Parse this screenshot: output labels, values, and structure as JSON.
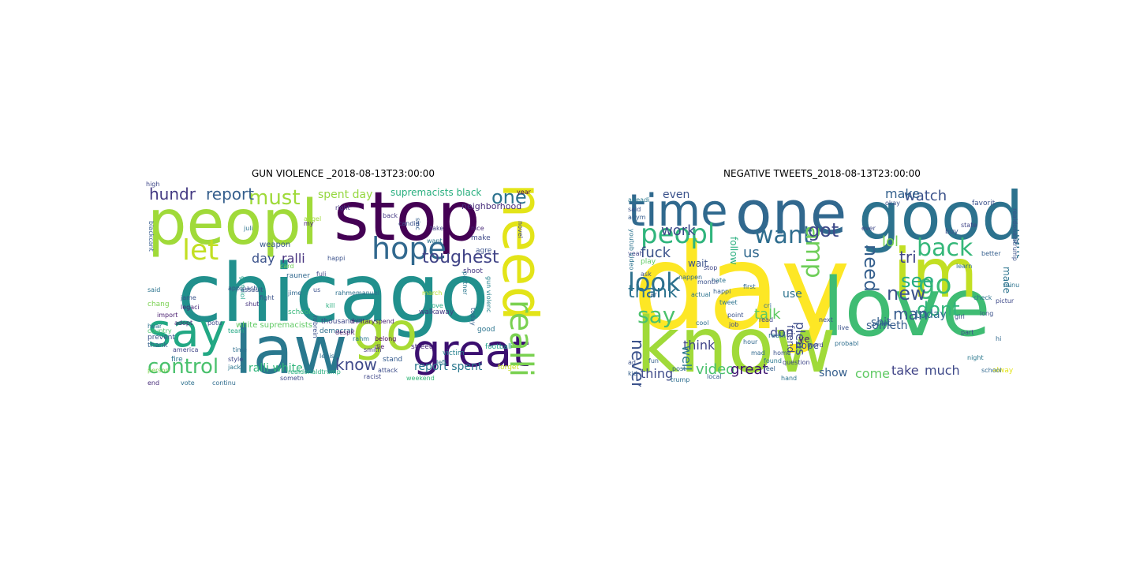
{
  "clouds": [
    {
      "title": "GUN VIOLENCE _2018-08-13T23:00:00",
      "words": [
        {
          "text": "chicago",
          "color": "#21908d"
        },
        {
          "text": "stop",
          "color": "#440154"
        },
        {
          "text": "peopl",
          "color": "#a0da39"
        },
        {
          "text": "law",
          "color": "#2a788e"
        },
        {
          "text": "say",
          "color": "#22a884"
        },
        {
          "text": "go",
          "color": "#a8db34"
        },
        {
          "text": "great",
          "color": "#3b0f70"
        },
        {
          "text": "need",
          "color": "#e3e418"
        },
        {
          "text": "hope",
          "color": "#31688e"
        },
        {
          "text": "let",
          "color": "#c2df23"
        },
        {
          "text": "control",
          "color": "#4ac16d"
        },
        {
          "text": "toughest",
          "color": "#414487"
        },
        {
          "text": "realli",
          "color": "#7ad151"
        },
        {
          "text": "must",
          "color": "#9fda3a"
        },
        {
          "text": "one",
          "color": "#2c728e"
        },
        {
          "text": "hundr",
          "color": "#443a83"
        },
        {
          "text": "report",
          "color": "#355f8d"
        },
        {
          "text": "know",
          "color": "#3e4989"
        },
        {
          "text": "spent day",
          "color": "#95d840"
        },
        {
          "text": "day",
          "color": "#3b528b"
        },
        {
          "text": "ralli",
          "color": "#46327e"
        },
        {
          "text": "report spent",
          "color": "#2a788e"
        },
        {
          "text": "ralli white",
          "color": "#31b57b"
        },
        {
          "text": "white supremacists",
          "color": "#5ec962"
        },
        {
          "text": "supremacists black",
          "color": "#29af7f"
        },
        {
          "text": "neighborhood",
          "color": "#472d7b"
        },
        {
          "text": "weapon",
          "color": "#38588c"
        },
        {
          "text": "democrat",
          "color": "#2e6f8e"
        },
        {
          "text": "thousand",
          "color": "#3f4788"
        },
        {
          "text": "street",
          "color": "#482878"
        },
        {
          "text": "football",
          "color": "#1f9e89"
        },
        {
          "text": "victim",
          "color": "#26828e"
        },
        {
          "text": "stand",
          "color": "#365c8d"
        },
        {
          "text": "shoot",
          "color": "#453882"
        },
        {
          "text": "year",
          "color": "#440154"
        },
        {
          "text": "america",
          "color": "#404588"
        },
        {
          "text": "prevent",
          "color": "#3b528b"
        },
        {
          "text": "thank",
          "color": "#34618d"
        },
        {
          "text": "fire",
          "color": "#2c738e"
        },
        {
          "text": "import",
          "color": "#481d6f"
        },
        {
          "text": "chang",
          "color": "#7ad151"
        },
        {
          "text": "hear",
          "color": "#2d708e"
        },
        {
          "text": "adopt",
          "color": "#482475"
        },
        {
          "text": "potu",
          "color": "#3e4989"
        },
        {
          "text": "team",
          "color": "#22a884"
        },
        {
          "text": "time",
          "color": "#2e6e8e"
        },
        {
          "text": "style",
          "color": "#3f4889"
        },
        {
          "text": "jack",
          "color": "#2a768e"
        },
        {
          "text": "school",
          "color": "#35b779"
        },
        {
          "text": "approach",
          "color": "#3a538b"
        },
        {
          "text": "shut",
          "color": "#46337e"
        },
        {
          "text": "fight",
          "color": "#3b528b"
        },
        {
          "text": "kill",
          "color": "#29af7f"
        },
        {
          "text": "rahm",
          "color": "#2a788e"
        },
        {
          "text": "smith",
          "color": "#453781"
        },
        {
          "text": "good",
          "color": "#2b748e"
        },
        {
          "text": "die",
          "color": "#481668"
        },
        {
          "text": "left",
          "color": "#287c8e"
        },
        {
          "text": "attack",
          "color": "#3d4d8a"
        },
        {
          "text": "make",
          "color": "#3e4a89"
        },
        {
          "text": "nice",
          "color": "#482878"
        },
        {
          "text": "agre",
          "color": "#3b528b"
        },
        {
          "text": "back",
          "color": "#443983"
        },
        {
          "text": "want",
          "color": "#2c728e"
        },
        {
          "text": "take",
          "color": "#424086"
        },
        {
          "text": "happi",
          "color": "#3b528b"
        },
        {
          "text": "right",
          "color": "#453882"
        },
        {
          "text": "said",
          "color": "#2c738e"
        },
        {
          "text": "end",
          "color": "#472c7a"
        },
        {
          "text": "vote",
          "color": "#2d708e"
        },
        {
          "text": "continu",
          "color": "#2f6c8e"
        },
        {
          "text": "person",
          "color": "#7fd34e"
        },
        {
          "text": "country",
          "color": "#4cc26c"
        },
        {
          "text": "march",
          "color": "#b5de2b"
        },
        {
          "text": "walkaway",
          "color": "#443a83"
        },
        {
          "text": "love",
          "color": "#22a884"
        },
        {
          "text": "sinc",
          "color": "#355f8d"
        },
        {
          "text": "militaryspend",
          "color": "#481f70"
        },
        {
          "text": "robrein",
          "color": "#3c4f8a"
        },
        {
          "text": "gunviol",
          "color": "#1fa088"
        },
        {
          "text": "legisl",
          "color": "#2e6e8e"
        },
        {
          "text": "candid",
          "color": "#3b528b"
        },
        {
          "text": "novel",
          "color": "#404688"
        },
        {
          "text": "partner",
          "color": "#2a778e"
        },
        {
          "text": "today",
          "color": "#34608d"
        },
        {
          "text": "forget",
          "color": "#c8e020"
        },
        {
          "text": "racist",
          "color": "#3f4788"
        },
        {
          "text": "weekend",
          "color": "#35b779"
        },
        {
          "text": "despit",
          "color": "#481467"
        },
        {
          "text": "belong",
          "color": "#440154"
        },
        {
          "text": "jime",
          "color": "#31688e"
        },
        {
          "text": "jame",
          "color": "#3a548c"
        },
        {
          "text": "assault",
          "color": "#3b528b"
        },
        {
          "text": "realdonaldtrump",
          "color": "#29af7f"
        },
        {
          "text": "rahmemanuel",
          "color": "#2d708e"
        },
        {
          "text": "blackcant",
          "color": "#365c8d"
        },
        {
          "text": "legaci",
          "color": "#482878"
        },
        {
          "text": "fuli",
          "color": "#3f4788"
        },
        {
          "text": "juli",
          "color": "#2c738e"
        },
        {
          "text": "us",
          "color": "#3b528b"
        },
        {
          "text": "rauner",
          "color": "#31688e"
        },
        {
          "text": "gun violenc",
          "color": "#26828e"
        },
        {
          "text": "angel",
          "color": "#9fda3a"
        },
        {
          "text": "sometn",
          "color": "#3e4989"
        },
        {
          "text": "my",
          "color": "#482475"
        },
        {
          "text": "card",
          "color": "#6ece58"
        },
        {
          "text": "high",
          "color": "#3f4788"
        }
      ]
    },
    {
      "title": "NEGATIVE TWEETS_2018-08-13T23:00:00",
      "words": [
        {
          "text": "day",
          "color": "#fde725"
        },
        {
          "text": "love",
          "color": "#3fbc73"
        },
        {
          "text": "know",
          "color": "#a0da39"
        },
        {
          "text": "good",
          "color": "#2c728e"
        },
        {
          "text": "one",
          "color": "#31688e"
        },
        {
          "text": "im",
          "color": "#c2df23"
        },
        {
          "text": "time",
          "color": "#30698e"
        },
        {
          "text": "peopl",
          "color": "#2fb47c"
        },
        {
          "text": "want",
          "color": "#2e6d8e"
        },
        {
          "text": "back",
          "color": "#35b779"
        },
        {
          "text": "go",
          "color": "#3aba76"
        },
        {
          "text": "dont",
          "color": "#31b57b"
        },
        {
          "text": "look",
          "color": "#2d708e"
        },
        {
          "text": "thank",
          "color": "#2c728e"
        },
        {
          "text": "amp",
          "color": "#6ece58"
        },
        {
          "text": "need",
          "color": "#355f8d"
        },
        {
          "text": "new",
          "color": "#3b528b"
        },
        {
          "text": "see",
          "color": "#26ad81"
        },
        {
          "text": "say",
          "color": "#4ac16d"
        },
        {
          "text": "got",
          "color": "#3e4a89"
        },
        {
          "text": "tri",
          "color": "#404588"
        },
        {
          "text": "man",
          "color": "#365c8d"
        },
        {
          "text": "watch",
          "color": "#3b528b"
        },
        {
          "text": "make",
          "color": "#34618d"
        },
        {
          "text": "lol",
          "color": "#7ad151"
        },
        {
          "text": "work",
          "color": "#3e4989"
        },
        {
          "text": "fuck",
          "color": "#3b528b"
        },
        {
          "text": "us",
          "color": "#31688e"
        },
        {
          "text": "right",
          "color": "#2d708e"
        },
        {
          "text": "talk",
          "color": "#5ec962"
        },
        {
          "text": "never",
          "color": "#3b528b"
        },
        {
          "text": "think",
          "color": "#404588"
        },
        {
          "text": "don",
          "color": "#3f4788"
        },
        {
          "text": "thing",
          "color": "#3e4a89"
        },
        {
          "text": "video",
          "color": "#4ac16d"
        },
        {
          "text": "great",
          "color": "#3b0f70"
        },
        {
          "text": "well",
          "color": "#2a788e"
        },
        {
          "text": "show",
          "color": "#355f8d"
        },
        {
          "text": "come",
          "color": "#5ec962"
        },
        {
          "text": "take",
          "color": "#414487"
        },
        {
          "text": "much",
          "color": "#3e4989"
        },
        {
          "text": "today",
          "color": "#2e6e8e"
        },
        {
          "text": "use",
          "color": "#2c738e"
        },
        {
          "text": "hope",
          "color": "#3b528b"
        },
        {
          "text": "pleas",
          "color": "#3d4d8a"
        },
        {
          "text": "someth",
          "color": "#365c8d"
        },
        {
          "text": "shit",
          "color": "#355f8d"
        },
        {
          "text": "made",
          "color": "#2c738e"
        },
        {
          "text": "even",
          "color": "#3b528b"
        },
        {
          "text": "friend",
          "color": "#3e4a89"
        },
        {
          "text": "play",
          "color": "#5ec962"
        },
        {
          "text": "wait",
          "color": "#3b528b"
        },
        {
          "text": "follow",
          "color": "#29af7f"
        },
        {
          "text": "realli",
          "color": "#2a788e"
        },
        {
          "text": "ye",
          "color": "#481d6f"
        },
        {
          "text": "alway",
          "color": "#e3e418"
        },
        {
          "text": "job",
          "color": "#3e4989"
        },
        {
          "text": "hate",
          "color": "#2c738e"
        },
        {
          "text": "happi",
          "color": "#355f8d"
        },
        {
          "text": "cri",
          "color": "#31688e"
        },
        {
          "text": "point",
          "color": "#3b528b"
        },
        {
          "text": "start",
          "color": "#2e6e8e"
        },
        {
          "text": "read",
          "color": "#3f4788"
        },
        {
          "text": "school",
          "color": "#31688e"
        },
        {
          "text": "better",
          "color": "#355f8d"
        },
        {
          "text": "favorit",
          "color": "#3b528b"
        },
        {
          "text": "minut",
          "color": "#2c738e"
        },
        {
          "text": "pictur",
          "color": "#3e4989"
        },
        {
          "text": "state",
          "color": "#404588"
        },
        {
          "text": "buy",
          "color": "#3b528b"
        },
        {
          "text": "learn",
          "color": "#2e6e8e"
        },
        {
          "text": "said",
          "color": "#3b528b"
        },
        {
          "text": "anym",
          "color": "#365c8d"
        },
        {
          "text": "month",
          "color": "#3b528b"
        },
        {
          "text": "actual",
          "color": "#2c738e"
        },
        {
          "text": "stop",
          "color": "#3f4788"
        },
        {
          "text": "hour",
          "color": "#31688e"
        },
        {
          "text": "kid",
          "color": "#355f8d"
        },
        {
          "text": "night",
          "color": "#2a788e"
        },
        {
          "text": "part",
          "color": "#3e4989"
        },
        {
          "text": "girl",
          "color": "#3b528b"
        },
        {
          "text": "check",
          "color": "#2c738e"
        },
        {
          "text": "ask",
          "color": "#3b528b"
        },
        {
          "text": "yeah",
          "color": "#404588"
        },
        {
          "text": "post",
          "color": "#31688e"
        },
        {
          "text": "trump",
          "color": "#2e6e8e"
        },
        {
          "text": "local",
          "color": "#355f8d"
        },
        {
          "text": "live",
          "color": "#3b528b"
        },
        {
          "text": "hand",
          "color": "#2c738e"
        },
        {
          "text": "word",
          "color": "#3e4989"
        },
        {
          "text": "first",
          "color": "#31688e"
        },
        {
          "text": "home",
          "color": "#3b528b"
        },
        {
          "text": "found",
          "color": "#2a788e"
        },
        {
          "text": "feel",
          "color": "#355f8d"
        },
        {
          "text": "next",
          "color": "#3b528b"
        },
        {
          "text": "probabl",
          "color": "#2e6e8e"
        },
        {
          "text": "question",
          "color": "#3f4788"
        },
        {
          "text": "hi",
          "color": "#31688e"
        },
        {
          "text": "long",
          "color": "#3b528b"
        },
        {
          "text": "fun",
          "color": "#355f8d"
        },
        {
          "text": "youtub video",
          "color": "#2c738e"
        },
        {
          "text": "realdonaldtrump",
          "color": "#3b528b"
        },
        {
          "text": "alreadi",
          "color": "#2a788e"
        },
        {
          "text": "ever",
          "color": "#3e4989"
        },
        {
          "text": "nappen",
          "color": "#31688e"
        },
        {
          "text": "ad",
          "color": "#3b528b"
        },
        {
          "text": "cool",
          "color": "#2e6e8e"
        },
        {
          "text": "car",
          "color": "#355f8d"
        },
        {
          "text": "okay",
          "color": "#3b528b"
        },
        {
          "text": "tweet",
          "color": "#2c738e"
        },
        {
          "text": "mad",
          "color": "#31688e"
        }
      ]
    }
  ]
}
